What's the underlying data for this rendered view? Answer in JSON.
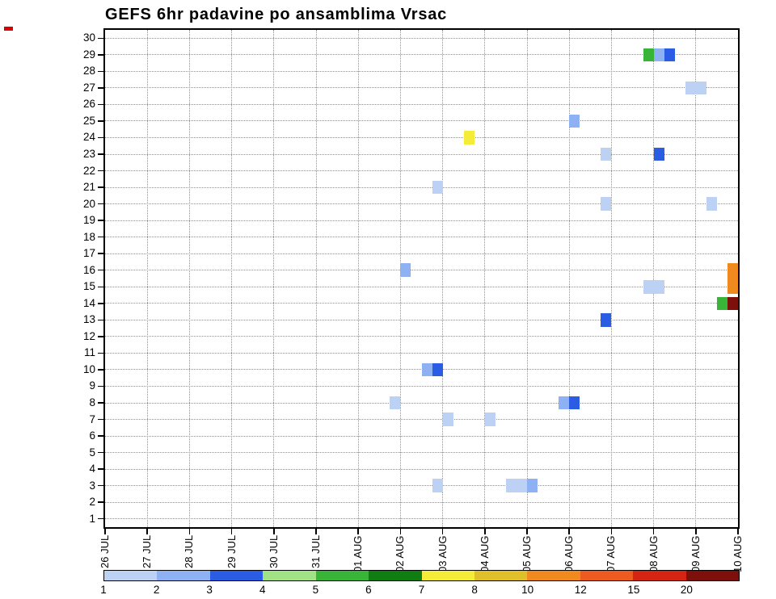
{
  "title": "GEFS 6hr padavine po ansamblima Vrsac",
  "chart_data": {
    "type": "heatmap",
    "title": "GEFS 6hr padavine po ansamblima Vrsac",
    "grid": "dotted",
    "corner_mark_color": "#dd0000",
    "steps_per_day": 4,
    "x_tick_labels": [
      "26 JUL",
      "27 JUL",
      "28 JUL",
      "29 JUL",
      "30 JUL",
      "31 JUL",
      "01 AUG",
      "02 AUG",
      "03 AUG",
      "04 AUG",
      "05 AUG",
      "06 AUG",
      "07 AUG",
      "08 AUG",
      "09 AUG",
      "10 AUG"
    ],
    "y_tick_labels": [
      1,
      2,
      3,
      4,
      5,
      6,
      7,
      8,
      9,
      10,
      11,
      12,
      13,
      14,
      15,
      16,
      17,
      18,
      19,
      20,
      21,
      22,
      23,
      24,
      25,
      26,
      27,
      28,
      29,
      30
    ],
    "colorbar": {
      "tick_labels": [
        "1",
        "2",
        "3",
        "4",
        "5",
        "6",
        "7",
        "8",
        "10",
        "12",
        "15",
        "20"
      ],
      "colors": [
        "#bdd1f5",
        "#8db1f3",
        "#2b5ce4",
        "#a2e287",
        "#38b438",
        "#0f7d12",
        "#f5ec3a",
        "#dfc02a",
        "#f18a1e",
        "#ee5b20",
        "#d42413",
        "#7d100a"
      ]
    },
    "cells": [
      {
        "member": 29,
        "step": 51,
        "color": 4
      },
      {
        "member": 29,
        "step": 52,
        "color": 1
      },
      {
        "member": 29,
        "step": 53,
        "color": 2
      },
      {
        "member": 27,
        "step": 55,
        "w": 2,
        "color": 0
      },
      {
        "member": 25,
        "step": 44,
        "color": 1
      },
      {
        "member": 24,
        "step": 34,
        "color": 6
      },
      {
        "member": 23,
        "step": 47,
        "color": 0
      },
      {
        "member": 23,
        "step": 52,
        "color": 2
      },
      {
        "member": 21,
        "step": 31,
        "color": 0
      },
      {
        "member": 20,
        "step": 47,
        "color": 0
      },
      {
        "member": 20,
        "step": 57,
        "color": 0
      },
      {
        "member": 16,
        "step": 28,
        "color": 1
      },
      {
        "member": 16,
        "step": 59,
        "h": 2,
        "color": 8
      },
      {
        "member": 15,
        "step": 51,
        "w": 2,
        "color": 0
      },
      {
        "member": 14,
        "step": 58,
        "color": 4
      },
      {
        "member": 14,
        "step": 59,
        "color": 11
      },
      {
        "member": 13,
        "step": 47,
        "color": 2
      },
      {
        "member": 10,
        "step": 30,
        "color": 1
      },
      {
        "member": 10,
        "step": 31,
        "color": 2
      },
      {
        "member": 8,
        "step": 27,
        "color": 0
      },
      {
        "member": 8,
        "step": 43,
        "color": 1
      },
      {
        "member": 8,
        "step": 44,
        "color": 2
      },
      {
        "member": 7,
        "step": 32,
        "color": 0
      },
      {
        "member": 7,
        "step": 36,
        "color": 0
      },
      {
        "member": 3,
        "step": 31,
        "color": 0
      },
      {
        "member": 3,
        "step": 38,
        "w": 2,
        "color": 0
      },
      {
        "member": 3,
        "step": 40,
        "color": 1
      }
    ]
  }
}
